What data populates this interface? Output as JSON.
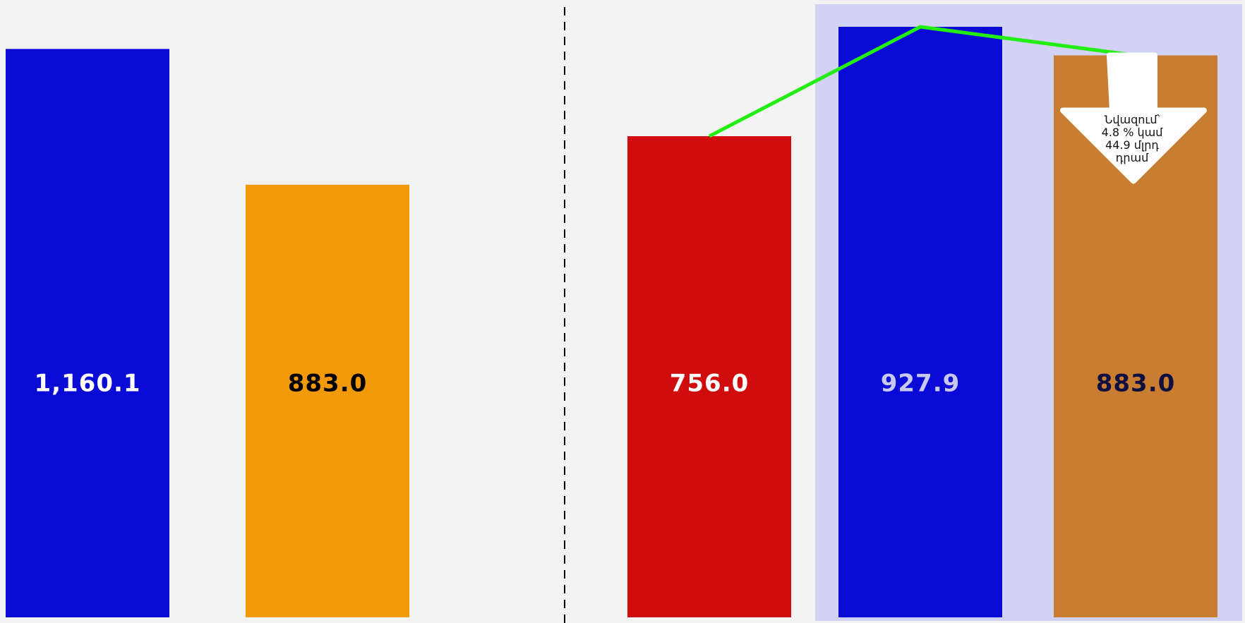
{
  "chart_data": [
    {
      "type": "bar",
      "values": [
        1160.1,
        883
      ],
      "value_labels": [
        "1,160.1",
        "883.0"
      ],
      "colors": [
        "#0a0ad6",
        "#f29a0a"
      ],
      "label_colors": [
        "#ffffff",
        "#000000"
      ],
      "ylim": [
        0,
        1260
      ]
    },
    {
      "type": "bar",
      "values": [
        756,
        927.9,
        883
      ],
      "value_labels": [
        "756.0",
        "927.9",
        "883.0"
      ],
      "colors": [
        "#d00c0c",
        "#0a0ad6",
        "#c97d30"
      ],
      "label_colors": [
        "#ffffff",
        "#c8c8f4",
        "#101040"
      ],
      "ylim": [
        0,
        970
      ],
      "line_color": "#22ee11",
      "annotation": [
        "Նվազում՝",
        "4.8 % կամ",
        "44.9  մլրդ",
        "դրամ"
      ]
    }
  ]
}
